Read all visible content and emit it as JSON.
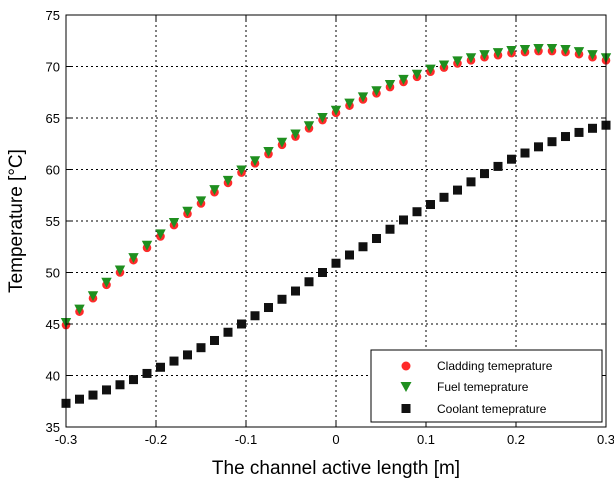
{
  "chart_data": {
    "type": "scatter",
    "title": "",
    "xlabel": "The channel active length [m]",
    "ylabel": "Temperature [°C]",
    "xlim": [
      -0.3,
      0.3
    ],
    "ylim": [
      35,
      75
    ],
    "xticks": [
      -0.3,
      -0.2,
      -0.1,
      0,
      0.1,
      0.2,
      0.3
    ],
    "xtick_labels": [
      "-0.3",
      "-0.2",
      "-0.1",
      "0",
      "0.1",
      "0.2",
      "0.3"
    ],
    "yticks": [
      35,
      40,
      45,
      50,
      55,
      60,
      65,
      70,
      75
    ],
    "ytick_labels": [
      "35",
      "40",
      "45",
      "50",
      "55",
      "60",
      "65",
      "70",
      "75"
    ],
    "grid": true,
    "legend_position": "bottom-right",
    "x": [
      -0.3,
      -0.285,
      -0.27,
      -0.255,
      -0.24,
      -0.225,
      -0.21,
      -0.195,
      -0.18,
      -0.165,
      -0.15,
      -0.135,
      -0.12,
      -0.105,
      -0.09,
      -0.075,
      -0.06,
      -0.045,
      -0.03,
      -0.015,
      0,
      0.015,
      0.03,
      0.045,
      0.06,
      0.075,
      0.09,
      0.105,
      0.12,
      0.135,
      0.15,
      0.165,
      0.18,
      0.195,
      0.21,
      0.225,
      0.24,
      0.255,
      0.27,
      0.285,
      0.3
    ],
    "series": [
      {
        "name": "Cladding temeprature",
        "marker": "circle",
        "color": "#ff2a2a",
        "values": [
          44.9,
          46.2,
          47.5,
          48.8,
          50.0,
          51.2,
          52.4,
          53.5,
          54.6,
          55.7,
          56.7,
          57.8,
          58.7,
          59.7,
          60.6,
          61.5,
          62.4,
          63.2,
          64.0,
          64.8,
          65.5,
          66.2,
          66.8,
          67.4,
          68.0,
          68.5,
          69.0,
          69.5,
          69.9,
          70.3,
          70.6,
          70.9,
          71.1,
          71.3,
          71.4,
          71.5,
          71.5,
          71.4,
          71.2,
          70.9,
          70.6
        ]
      },
      {
        "name": "Fuel temeprature",
        "marker": "triangle-down",
        "color": "#1f8f1f",
        "values": [
          45.1,
          46.4,
          47.7,
          49.0,
          50.2,
          51.4,
          52.6,
          53.7,
          54.8,
          55.9,
          56.9,
          58.0,
          58.9,
          59.9,
          60.8,
          61.7,
          62.6,
          63.4,
          64.2,
          65.0,
          65.7,
          66.4,
          67.0,
          67.6,
          68.2,
          68.7,
          69.2,
          69.7,
          70.1,
          70.5,
          70.8,
          71.1,
          71.3,
          71.5,
          71.6,
          71.7,
          71.7,
          71.6,
          71.4,
          71.1,
          70.8
        ]
      },
      {
        "name": "Coolant temeprature",
        "marker": "square",
        "color": "#111111",
        "values": [
          37.3,
          37.7,
          38.1,
          38.6,
          39.1,
          39.6,
          40.2,
          40.8,
          41.4,
          42.0,
          42.7,
          43.4,
          44.2,
          45.0,
          45.8,
          46.6,
          47.4,
          48.2,
          49.1,
          50.0,
          50.9,
          51.7,
          52.5,
          53.3,
          54.2,
          55.1,
          55.9,
          56.6,
          57.3,
          58.0,
          58.8,
          59.6,
          60.3,
          61.0,
          61.6,
          62.2,
          62.7,
          63.2,
          63.6,
          64.0,
          64.3
        ]
      }
    ]
  }
}
